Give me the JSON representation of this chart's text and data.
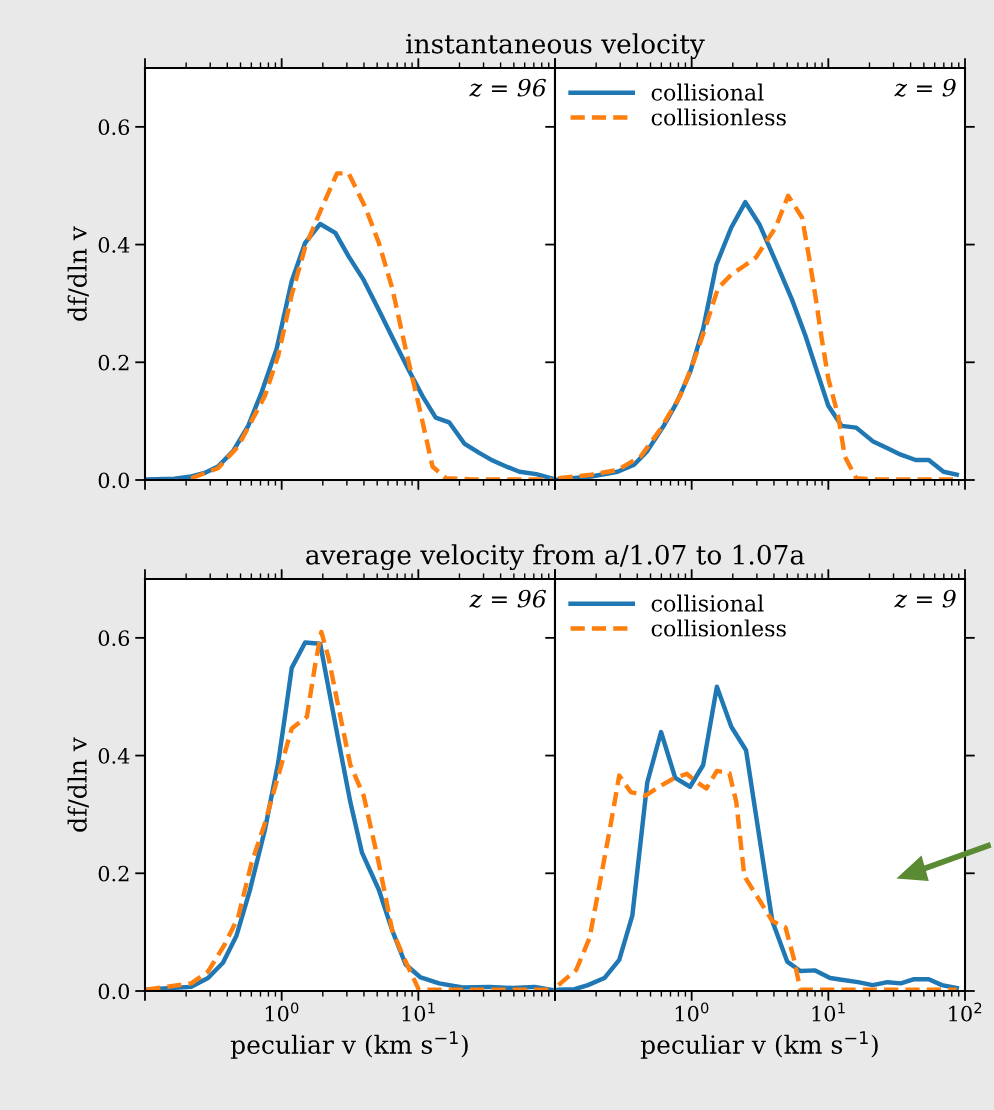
{
  "chart_data": [
    {
      "type": "line",
      "title": "instantaneous velocity",
      "ylabel": "df/dln v",
      "annotations": [
        "z = 96"
      ],
      "log": "x",
      "xlim": [
        0.1,
        100
      ],
      "ylim": [
        0,
        0.7
      ],
      "xticks": [
        {
          "value": 0.1,
          "label": null
        },
        {
          "value": 1,
          "label": null
        },
        {
          "value": 10,
          "label": null
        },
        {
          "value": 100,
          "label": null
        }
      ],
      "yticks": [
        {
          "value": 0,
          "label": "0.0"
        },
        0.2,
        0.4,
        0.6
      ],
      "tick_labels": "y",
      "grid": false,
      "series": [
        {
          "color": "#1f77b4",
          "line_style": "solid",
          "x": [
            0.102,
            0.164,
            0.218,
            0.273,
            0.342,
            0.441,
            0.569,
            0.713,
            0.919,
            1.185,
            1.485,
            1.914,
            2.47,
            3.09,
            3.98,
            5.14,
            6.62,
            8.54,
            10.7,
            13.4,
            16.8,
            21.7,
            27.9,
            35.0,
            43.9,
            55.0,
            72.9,
            94.0
          ],
          "values": [
            0.001,
            0.002,
            0.006,
            0.012,
            0.023,
            0.049,
            0.092,
            0.149,
            0.223,
            0.338,
            0.403,
            0.435,
            0.42,
            0.38,
            0.34,
            0.289,
            0.237,
            0.186,
            0.143,
            0.106,
            0.098,
            0.062,
            0.046,
            0.033,
            0.023,
            0.014,
            0.01,
            0.003
          ]
        },
        {
          "color": "#ff7f0e",
          "line_style": "dashed",
          "x": [
            0.218,
            0.342,
            0.48,
            0.754,
            0.945,
            1.185,
            1.485,
            1.97,
            2.54,
            3.09,
            4.1,
            5.14,
            6.44,
            8.07,
            10.1,
            12.7,
            15.9,
            24.9,
            94.0
          ],
          "values": [
            0.003,
            0.02,
            0.057,
            0.143,
            0.212,
            0.315,
            0.395,
            0.463,
            0.521,
            0.521,
            0.463,
            0.403,
            0.326,
            0.223,
            0.126,
            0.023,
            0.003,
            0.001,
            0.001
          ]
        }
      ]
    },
    {
      "type": "line",
      "annotations": [
        "z = 9"
      ],
      "log": "x",
      "xlim": [
        0.1,
        100
      ],
      "ylim": [
        0,
        0.7
      ],
      "xticks": [
        {
          "value": 0.1,
          "label": null
        },
        {
          "value": 1,
          "label": null
        },
        {
          "value": 10,
          "label": null
        },
        {
          "value": 100,
          "label": null
        }
      ],
      "yticks": [
        0.0,
        0.2,
        0.4,
        0.6
      ],
      "tick_labels": false,
      "grid": false,
      "legend": "top left",
      "series": [
        {
          "name": "collisional",
          "color": "#1f77b4",
          "line_style": "solid",
          "x": [
            0.106,
            0.184,
            0.287,
            0.379,
            0.473,
            0.624,
            0.779,
            0.973,
            1.214,
            1.516,
            1.95,
            2.47,
            3.12,
            4.11,
            5.43,
            6.78,
            8.47,
            10.0,
            12.5,
            16.0,
            21.1,
            27.1,
            33.9,
            43.5,
            54.3,
            69.7,
            87.1
          ],
          "values": [
            0.001,
            0.006,
            0.014,
            0.026,
            0.049,
            0.092,
            0.132,
            0.183,
            0.257,
            0.366,
            0.429,
            0.472,
            0.435,
            0.372,
            0.306,
            0.246,
            0.177,
            0.126,
            0.092,
            0.089,
            0.066,
            0.054,
            0.043,
            0.034,
            0.034,
            0.014,
            0.009
          ]
        },
        {
          "name": "collisionless",
          "color": "#ff7f0e",
          "line_style": "dashed",
          "x": [
            0.106,
            0.184,
            0.287,
            0.423,
            0.59,
            0.824,
            1.03,
            1.25,
            1.56,
            1.95,
            2.43,
            2.95,
            4.11,
            5.08,
            6.42,
            7.17,
            8.01,
            8.95,
            10.0,
            11.8,
            13.2,
            16.0,
            23.0,
            87.1
          ],
          "values": [
            0.003,
            0.009,
            0.017,
            0.04,
            0.086,
            0.143,
            0.2,
            0.257,
            0.326,
            0.349,
            0.364,
            0.378,
            0.429,
            0.483,
            0.446,
            0.383,
            0.315,
            0.24,
            0.172,
            0.109,
            0.04,
            0.003,
            0.001,
            0.001
          ]
        }
      ]
    },
    {
      "type": "line",
      "title": "average velocity from a/1.07 to 1.07a",
      "xlabel": "peculiar v (km s$^{−1}$)",
      "ylabel": "df/dln v",
      "annotations": [
        "z = 96"
      ],
      "log": "x",
      "xlim": [
        0.1,
        100
      ],
      "ylim": [
        0,
        0.7
      ],
      "xticks": [
        {
          "value": 0.1,
          "label": null
        },
        {
          "value": 1,
          "label": "10$^{0}$"
        },
        {
          "value": 10,
          "label": "10$^{1}$"
        },
        {
          "value": 100,
          "label": null
        }
      ],
      "yticks": [
        {
          "value": 0,
          "label": "0.0"
        },
        0.2,
        0.4,
        0.6
      ],
      "grid": false,
      "series": [
        {
          "color": "#1f77b4",
          "line_style": "solid",
          "x": [
            0.102,
            0.155,
            0.218,
            0.289,
            0.372,
            0.467,
            0.585,
            0.754,
            0.945,
            1.06,
            1.185,
            1.485,
            1.914,
            2.2,
            2.61,
            3.18,
            3.87,
            5.14,
            6.44,
            8.07,
            10.4,
            14.2,
            21.1,
            33.1,
            49.1,
            70.8,
            94.0
          ],
          "values": [
            0.002,
            0.005,
            0.007,
            0.022,
            0.048,
            0.094,
            0.171,
            0.274,
            0.389,
            0.469,
            0.549,
            0.592,
            0.59,
            0.515,
            0.424,
            0.321,
            0.235,
            0.172,
            0.103,
            0.045,
            0.023,
            0.013,
            0.006,
            0.007,
            0.005,
            0.007,
            0.002
          ]
        },
        {
          "color": "#ff7f0e",
          "line_style": "dashed",
          "x": [
            0.102,
            0.218,
            0.289,
            0.383,
            0.48,
            0.601,
            0.754,
            0.945,
            1.185,
            1.53,
            1.76,
            1.95,
            2.2,
            2.61,
            3.18,
            3.98,
            5.14,
            6.44,
            8.07,
            10.1,
            14.2,
            94.0
          ],
          "values": [
            0.002,
            0.013,
            0.033,
            0.079,
            0.125,
            0.217,
            0.285,
            0.366,
            0.446,
            0.466,
            0.555,
            0.61,
            0.567,
            0.481,
            0.384,
            0.332,
            0.217,
            0.103,
            0.05,
            0.002,
            0.002,
            0.002
          ]
        }
      ]
    },
    {
      "type": "line",
      "xlabel": "peculiar v (km s$^{−1}$)",
      "annotations": [
        "z = 9"
      ],
      "log": "x",
      "xlim": [
        0.1,
        100
      ],
      "ylim": [
        0,
        0.7
      ],
      "xticks": [
        {
          "value": 0.1,
          "label": null
        },
        {
          "value": 1,
          "label": "10$^{0}$"
        },
        {
          "value": 10,
          "label": "10$^{1}$"
        },
        {
          "value": 100,
          "label": "10$^{2}$"
        }
      ],
      "yticks": [
        0.0,
        0.2,
        0.4,
        0.6
      ],
      "tick_labels": "x",
      "grid": false,
      "legend": "top left",
      "series": [
        {
          "name": "collisional",
          "color": "#1f77b4",
          "line_style": "solid",
          "x": [
            0.106,
            0.139,
            0.174,
            0.23,
            0.295,
            0.368,
            0.473,
            0.597,
            0.758,
            0.973,
            1.214,
            1.53,
            1.95,
            2.5,
            3.12,
            3.89,
            5.0,
            6.24,
            8.01,
            10.3,
            12.5,
            16.5,
            21.1,
            27.1,
            33.9,
            42.4,
            54.3,
            67.8,
            87.1
          ],
          "values": [
            0.002,
            0.003,
            0.01,
            0.022,
            0.053,
            0.128,
            0.354,
            0.44,
            0.362,
            0.347,
            0.384,
            0.517,
            0.449,
            0.409,
            0.263,
            0.119,
            0.05,
            0.034,
            0.035,
            0.022,
            0.019,
            0.015,
            0.01,
            0.015,
            0.013,
            0.02,
            0.02,
            0.01,
            0.005
          ]
        },
        {
          "name": "collisionless",
          "color": "#ff7f0e",
          "line_style": "dashed",
          "x": [
            0.106,
            0.143,
            0.179,
            0.217,
            0.257,
            0.295,
            0.358,
            0.46,
            0.597,
            0.737,
            0.92,
            1.09,
            1.28,
            1.53,
            1.89,
            2.12,
            2.43,
            3.12,
            3.89,
            4.86,
            5.58,
            6.24,
            8.95,
            87.1
          ],
          "values": [
            0.01,
            0.036,
            0.09,
            0.194,
            0.286,
            0.366,
            0.338,
            0.332,
            0.349,
            0.361,
            0.369,
            0.355,
            0.344,
            0.374,
            0.37,
            0.321,
            0.195,
            0.155,
            0.119,
            0.108,
            0.056,
            0.002,
            0.002,
            0.002
          ]
        }
      ]
    }
  ]
}
